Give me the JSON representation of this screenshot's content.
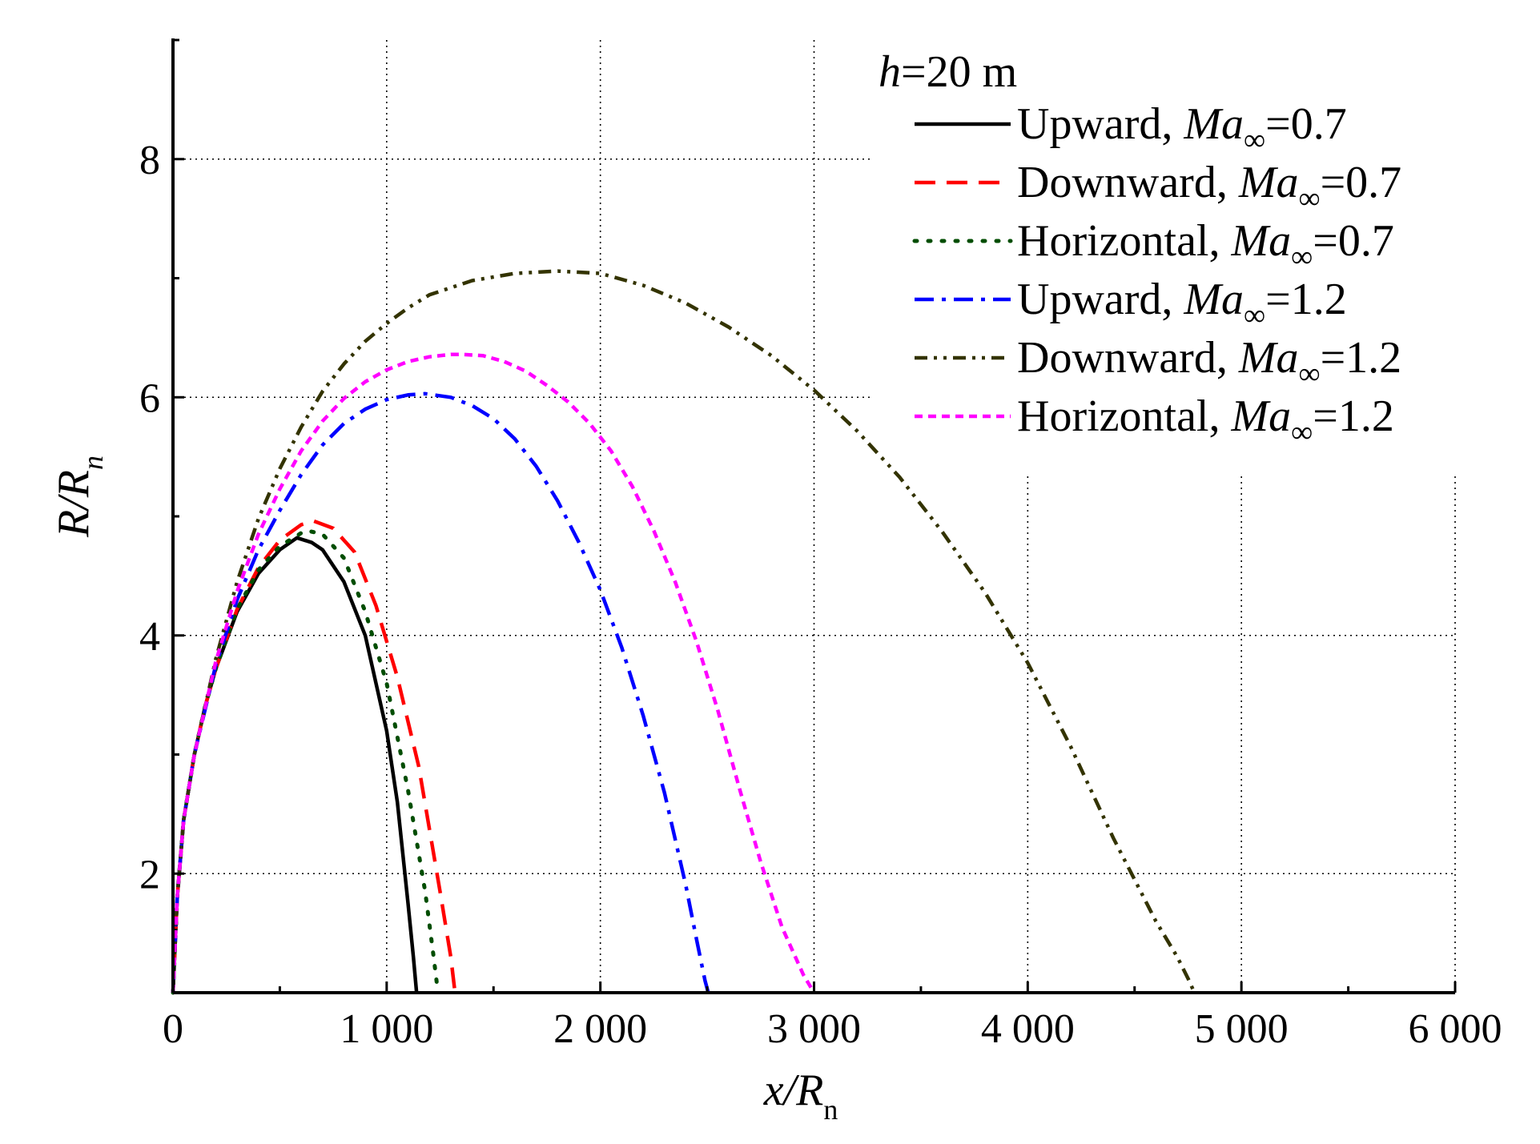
{
  "chart_data": {
    "type": "line",
    "xlabel_main": "x/R",
    "xlabel_sub": "n",
    "ylabel_main": "R/R",
    "ylabel_sub": "n",
    "xlim": [
      0,
      6000
    ],
    "ylim": [
      1,
      9
    ],
    "x_ticks": [
      0,
      1000,
      2000,
      3000,
      4000,
      5000,
      6000
    ],
    "x_tick_labels": [
      "0",
      "1 000",
      "2 000",
      "3 000",
      "4 000",
      "5 000",
      "6 000"
    ],
    "x_minor_ticks": [
      500,
      1500,
      2500,
      3500,
      4500,
      5500
    ],
    "y_ticks": [
      2,
      4,
      6,
      8
    ],
    "y_tick_labels": [
      "2",
      "4",
      "6",
      "8"
    ],
    "y_minor_ticks": [
      1,
      3,
      5,
      7,
      9
    ],
    "grid": true,
    "legend_position": "top-right",
    "legend_header": {
      "italic": "h",
      "rest": "=20 m"
    },
    "series": [
      {
        "name": "Upward, Ma∞=0.7",
        "label_prefix": "Upward, ",
        "label_value": "=0.7",
        "color": "#000000",
        "dash": "solid",
        "x": [
          0,
          20,
          50,
          100,
          150,
          200,
          300,
          400,
          500,
          580,
          650,
          700,
          800,
          900,
          1000,
          1050,
          1100,
          1125,
          1140
        ],
        "y": [
          1.0,
          1.8,
          2.45,
          3.0,
          3.4,
          3.72,
          4.2,
          4.52,
          4.72,
          4.82,
          4.78,
          4.72,
          4.45,
          4.0,
          3.2,
          2.6,
          1.75,
          1.3,
          1.0
        ]
      },
      {
        "name": "Downward, Ma∞=0.7",
        "label_prefix": "Downward, ",
        "label_value": "=0.7",
        "color": "#ff0000",
        "dash": "dashed",
        "x": [
          0,
          20,
          50,
          100,
          150,
          200,
          300,
          400,
          500,
          600,
          660,
          750,
          850,
          950,
          1050,
          1150,
          1250,
          1300,
          1320
        ],
        "y": [
          1.0,
          1.8,
          2.45,
          3.0,
          3.4,
          3.72,
          4.22,
          4.57,
          4.8,
          4.93,
          4.96,
          4.9,
          4.7,
          4.25,
          3.65,
          2.9,
          1.85,
          1.3,
          1.0
        ]
      },
      {
        "name": "Horizontal, Ma∞=0.7",
        "label_prefix": "Horizontal, ",
        "label_value": "=0.7",
        "color": "#004d00",
        "dash": "dotted",
        "x": [
          0,
          20,
          50,
          100,
          150,
          200,
          300,
          400,
          500,
          600,
          630,
          700,
          800,
          900,
          1000,
          1100,
          1180,
          1220,
          1240
        ],
        "y": [
          1.0,
          1.8,
          2.45,
          3.0,
          3.4,
          3.72,
          4.22,
          4.55,
          4.75,
          4.86,
          4.88,
          4.85,
          4.65,
          4.2,
          3.6,
          2.7,
          1.85,
          1.3,
          1.0
        ]
      },
      {
        "name": "Upward, Ma∞=1.2",
        "label_prefix": "Upward, ",
        "label_value": "=1.2",
        "color": "#0000ff",
        "dash": "dashdot",
        "x": [
          0,
          20,
          50,
          100,
          200,
          300,
          400,
          500,
          600,
          700,
          800,
          900,
          1000,
          1100,
          1180,
          1300,
          1400,
          1500,
          1600,
          1700,
          1800,
          1900,
          2000,
          2100,
          2200,
          2300,
          2400,
          2450,
          2490,
          2505
        ],
        "y": [
          1.0,
          1.8,
          2.45,
          3.0,
          3.75,
          4.3,
          4.72,
          5.05,
          5.35,
          5.6,
          5.78,
          5.9,
          5.98,
          6.02,
          6.03,
          6.0,
          5.93,
          5.82,
          5.65,
          5.42,
          5.13,
          4.78,
          4.38,
          3.9,
          3.33,
          2.68,
          1.9,
          1.45,
          1.1,
          1.0
        ]
      },
      {
        "name": "Downward, Ma∞=1.2",
        "label_prefix": "Downward, ",
        "label_value": "=1.2",
        "color": "#333300",
        "dash": "dashdotdot",
        "x": [
          0,
          20,
          50,
          100,
          200,
          300,
          400,
          500,
          600,
          700,
          800,
          900,
          1000,
          1100,
          1200,
          1400,
          1600,
          1800,
          2000,
          2200,
          2400,
          2600,
          2800,
          3000,
          3200,
          3400,
          3600,
          3800,
          4000,
          4200,
          4400,
          4600,
          4700,
          4750,
          4780
        ],
        "y": [
          1.0,
          1.8,
          2.45,
          3.0,
          3.8,
          4.45,
          4.98,
          5.4,
          5.75,
          6.05,
          6.28,
          6.47,
          6.62,
          6.75,
          6.86,
          6.98,
          7.04,
          7.06,
          7.04,
          6.94,
          6.79,
          6.59,
          6.35,
          6.06,
          5.72,
          5.33,
          4.87,
          4.36,
          3.77,
          3.07,
          2.3,
          1.6,
          1.3,
          1.12,
          1.0
        ]
      },
      {
        "name": "Horizontal, Ma∞=1.2",
        "label_prefix": "Horizontal, ",
        "label_value": "=1.2",
        "color": "#ff00ff",
        "dash": "shortdash",
        "x": [
          0,
          20,
          50,
          100,
          200,
          300,
          400,
          500,
          600,
          700,
          800,
          900,
          1000,
          1100,
          1200,
          1300,
          1350,
          1450,
          1550,
          1650,
          1750,
          1850,
          1950,
          2050,
          2150,
          2250,
          2350,
          2450,
          2550,
          2650,
          2750,
          2850,
          2950,
          3000
        ],
        "y": [
          1.0,
          1.8,
          2.45,
          3.0,
          3.78,
          4.37,
          4.85,
          5.23,
          5.55,
          5.8,
          5.99,
          6.13,
          6.23,
          6.3,
          6.34,
          6.36,
          6.36,
          6.35,
          6.3,
          6.22,
          6.1,
          5.96,
          5.78,
          5.55,
          5.25,
          4.88,
          4.45,
          3.95,
          3.37,
          2.72,
          2.1,
          1.55,
          1.15,
          1.0
        ]
      }
    ]
  }
}
